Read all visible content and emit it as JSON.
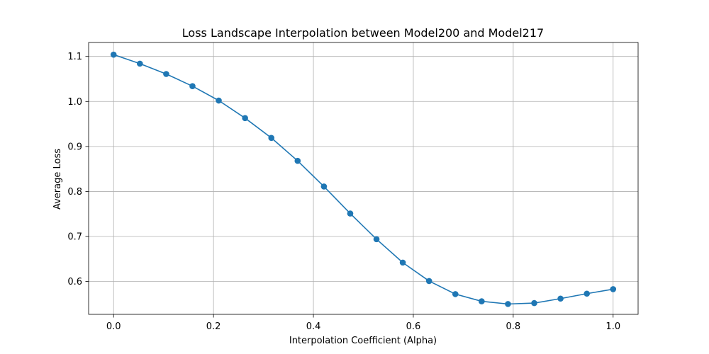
{
  "chart_data": {
    "type": "line",
    "title": "Loss Landscape Interpolation between Model200 and Model217",
    "xlabel": "Interpolation Coefficient (Alpha)",
    "ylabel": "Average Loss",
    "xlim": [
      -0.05,
      1.05
    ],
    "ylim": [
      0.527,
      1.131
    ],
    "xticks": [
      0.0,
      0.2,
      0.4,
      0.6,
      0.8,
      1.0
    ],
    "xtick_labels": [
      "0.0",
      "0.2",
      "0.4",
      "0.6",
      "0.8",
      "1.0"
    ],
    "yticks": [
      0.6,
      0.7,
      0.8,
      0.9,
      1.0,
      1.1
    ],
    "ytick_labels": [
      "0.6",
      "0.7",
      "0.8",
      "0.9",
      "1.0",
      "1.1"
    ],
    "grid": true,
    "legend": "none",
    "series": [
      {
        "color": "#1f77b4",
        "marker": "circle",
        "x": [
          0.0,
          0.0526,
          0.1053,
          0.1579,
          0.2105,
          0.2632,
          0.3158,
          0.3684,
          0.4211,
          0.4737,
          0.5263,
          0.5789,
          0.6316,
          0.6842,
          0.7368,
          0.7895,
          0.8421,
          0.8947,
          0.9474,
          1.0
        ],
        "y": [
          1.104,
          1.084,
          1.061,
          1.034,
          1.002,
          0.963,
          0.919,
          0.868,
          0.811,
          0.751,
          0.694,
          0.642,
          0.601,
          0.572,
          0.556,
          0.55,
          0.552,
          0.562,
          0.573,
          0.583
        ]
      }
    ]
  }
}
